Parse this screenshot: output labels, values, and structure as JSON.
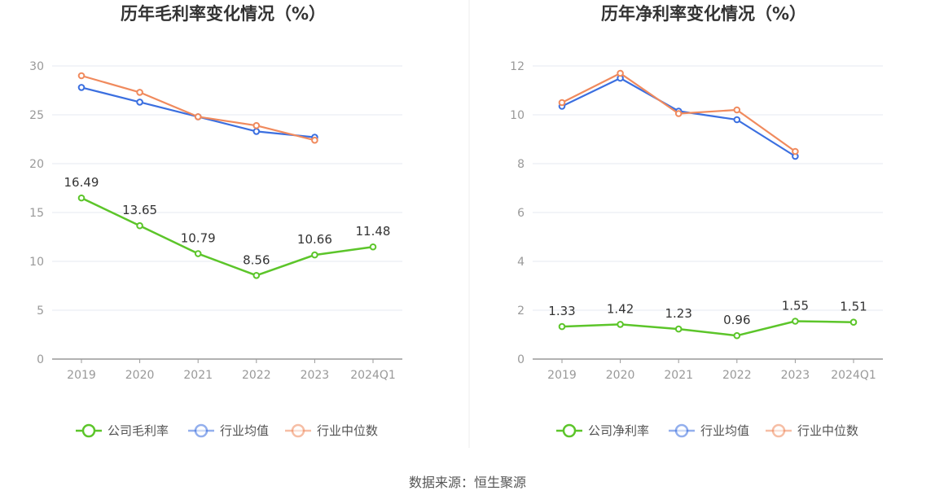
{
  "colors": {
    "company": "#5cc52a",
    "avg": "#3b6fe0",
    "median": "#f08a5d",
    "grid": "#e6e9f2",
    "axis": "#999999",
    "divider": "#eeeeee"
  },
  "source": "数据来源：恒生聚源",
  "chart_data": [
    {
      "type": "line",
      "title": "历年毛利率变化情况（%）",
      "categories": [
        "2019",
        "2020",
        "2021",
        "2022",
        "2023",
        "2024Q1"
      ],
      "ylim": [
        0,
        30
      ],
      "yticks": [
        0,
        5,
        10,
        15,
        20,
        25,
        30
      ],
      "series": [
        {
          "name": "公司毛利率",
          "key": "company",
          "values": [
            16.49,
            13.65,
            10.79,
            8.56,
            10.66,
            11.48
          ],
          "labels": [
            "16.49",
            "13.65",
            "10.79",
            "8.56",
            "10.66",
            "11.48"
          ]
        },
        {
          "name": "行业均值",
          "key": "avg",
          "values": [
            27.8,
            26.3,
            24.8,
            23.3,
            22.7,
            null
          ]
        },
        {
          "name": "行业中位数",
          "key": "median",
          "values": [
            29.0,
            27.3,
            24.8,
            23.9,
            22.4,
            null
          ]
        }
      ]
    },
    {
      "type": "line",
      "title": "历年净利率变化情况（%）",
      "categories": [
        "2019",
        "2020",
        "2021",
        "2022",
        "2023",
        "2024Q1"
      ],
      "ylim": [
        0,
        12
      ],
      "yticks": [
        0,
        2,
        4,
        6,
        8,
        10,
        12
      ],
      "series": [
        {
          "name": "公司净利率",
          "key": "company",
          "values": [
            1.33,
            1.42,
            1.23,
            0.96,
            1.55,
            1.51
          ],
          "labels": [
            "1.33",
            "1.42",
            "1.23",
            "0.96",
            "1.55",
            "1.51"
          ]
        },
        {
          "name": "行业均值",
          "key": "avg",
          "values": [
            10.35,
            11.5,
            10.15,
            9.8,
            8.3,
            null
          ]
        },
        {
          "name": "行业中位数",
          "key": "median",
          "values": [
            10.5,
            11.7,
            10.05,
            10.2,
            8.5,
            null
          ]
        }
      ]
    }
  ]
}
